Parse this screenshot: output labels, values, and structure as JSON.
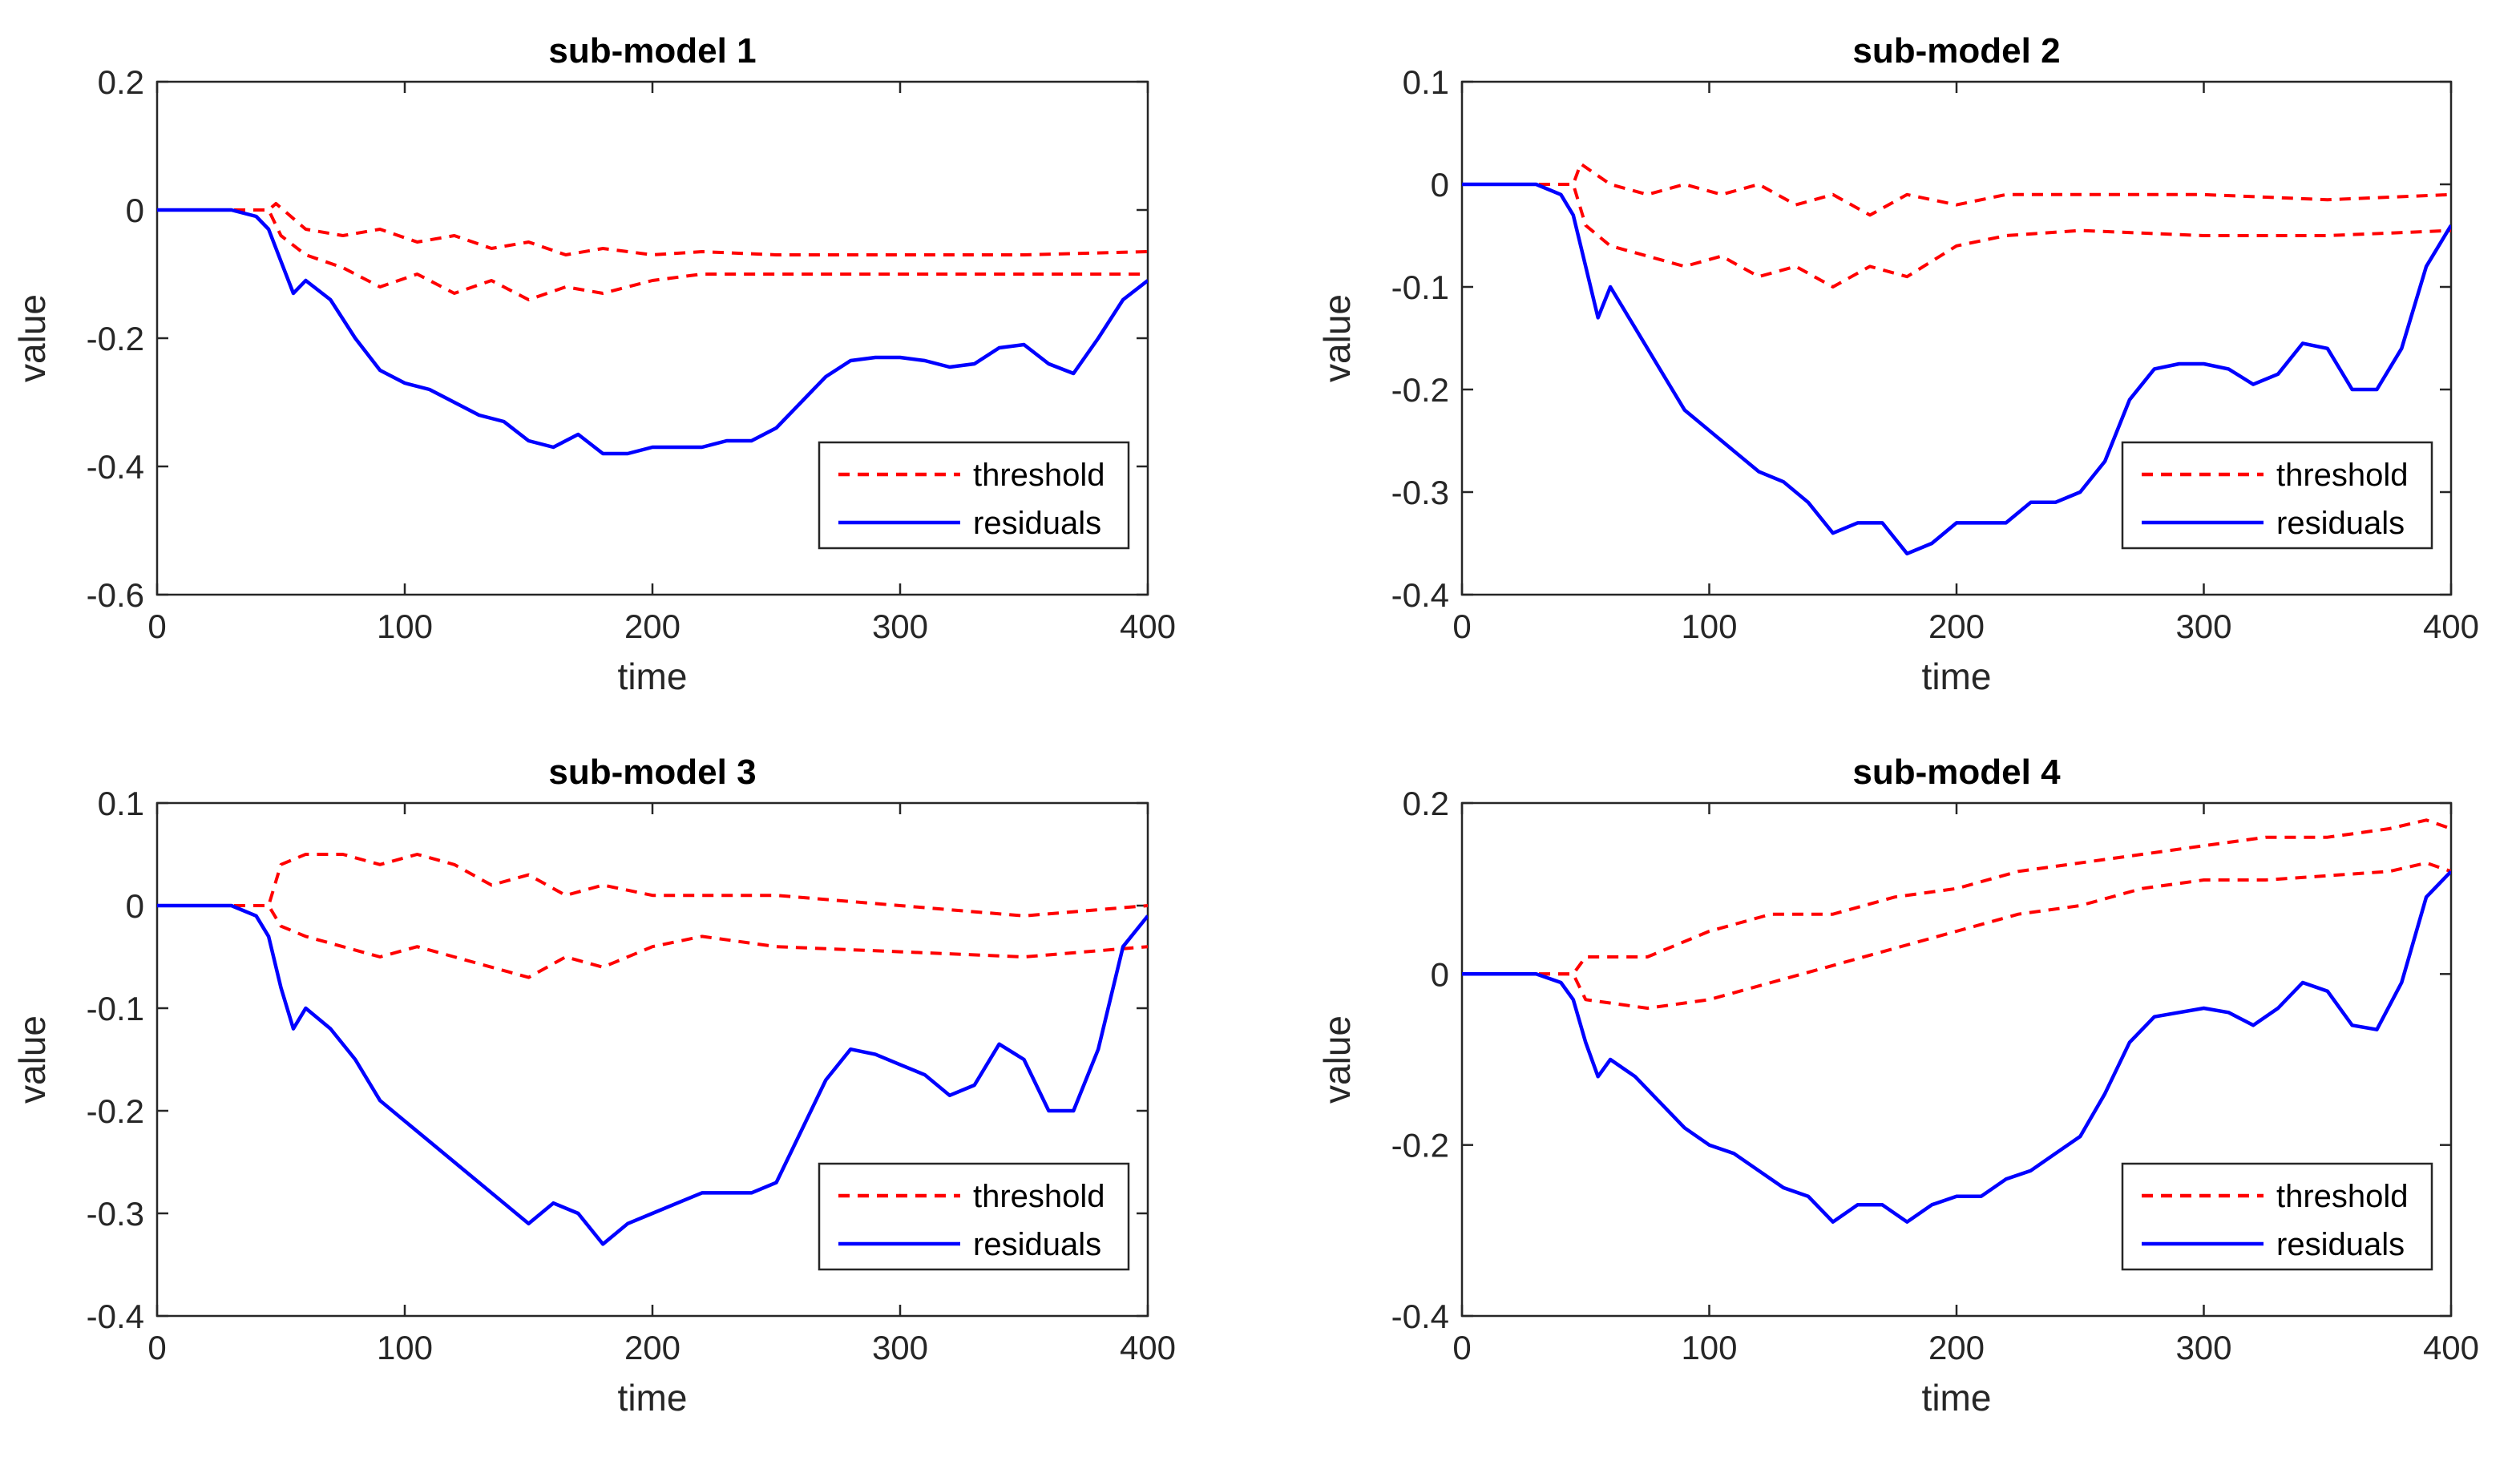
{
  "chart_data": [
    {
      "type": "line",
      "title": "sub-model 1",
      "xlabel": "time",
      "ylabel": "value",
      "xlim": [
        0,
        400
      ],
      "ylim": [
        -0.6,
        0.2
      ],
      "xticks": [
        "0",
        "100",
        "200",
        "300",
        "400"
      ],
      "yticks": [
        "-0.6",
        "-0.4",
        "-0.2",
        "0",
        "0.2"
      ],
      "legend_position": "lower-right",
      "series": [
        {
          "name": "threshold",
          "style": "dashed",
          "color": "#ff0000",
          "upper": {
            "x": [
              0,
              45,
              48,
              60,
              75,
              90,
              105,
              120,
              135,
              150,
              165,
              180,
              200,
              220,
              250,
              300,
              350,
              400
            ],
            "y": [
              0,
              0,
              0.01,
              -0.03,
              -0.04,
              -0.03,
              -0.05,
              -0.04,
              -0.06,
              -0.05,
              -0.07,
              -0.06,
              -0.07,
              -0.065,
              -0.07,
              -0.07,
              -0.07,
              -0.065
            ]
          },
          "lower": {
            "x": [
              0,
              45,
              50,
              60,
              75,
              90,
              105,
              120,
              135,
              150,
              165,
              180,
              200,
              220,
              250,
              300,
              350,
              400
            ],
            "y": [
              0,
              0,
              -0.04,
              -0.07,
              -0.09,
              -0.12,
              -0.1,
              -0.13,
              -0.11,
              -0.14,
              -0.12,
              -0.13,
              -0.11,
              -0.1,
              -0.1,
              -0.1,
              -0.1,
              -0.1
            ]
          }
        },
        {
          "name": "residuals",
          "style": "solid",
          "color": "#0000ff",
          "x": [
            0,
            30,
            40,
            45,
            50,
            55,
            60,
            70,
            80,
            90,
            100,
            110,
            120,
            130,
            140,
            150,
            160,
            170,
            180,
            190,
            200,
            210,
            220,
            230,
            240,
            250,
            260,
            270,
            280,
            290,
            300,
            310,
            320,
            330,
            340,
            350,
            360,
            370,
            380,
            390,
            400
          ],
          "y": [
            0,
            0,
            -0.01,
            -0.03,
            -0.08,
            -0.13,
            -0.11,
            -0.14,
            -0.2,
            -0.25,
            -0.27,
            -0.28,
            -0.3,
            -0.32,
            -0.33,
            -0.36,
            -0.37,
            -0.35,
            -0.38,
            -0.38,
            -0.37,
            -0.37,
            -0.37,
            -0.36,
            -0.36,
            -0.34,
            -0.3,
            -0.26,
            -0.235,
            -0.23,
            -0.23,
            -0.235,
            -0.245,
            -0.24,
            -0.215,
            -0.21,
            -0.24,
            -0.255,
            -0.2,
            -0.14,
            -0.11
          ]
        }
      ]
    },
    {
      "type": "line",
      "title": "sub-model 2",
      "xlabel": "time",
      "ylabel": "value",
      "xlim": [
        0,
        400
      ],
      "ylim": [
        -0.4,
        0.1
      ],
      "xticks": [
        "0",
        "100",
        "200",
        "300",
        "400"
      ],
      "yticks": [
        "-0.4",
        "-0.3",
        "-0.2",
        "-0.1",
        "0",
        "0.1"
      ],
      "legend_position": "lower-right",
      "series": [
        {
          "name": "threshold",
          "style": "dashed",
          "color": "#ff0000",
          "upper": {
            "x": [
              0,
              45,
              48,
              60,
              75,
              90,
              105,
              120,
              135,
              150,
              165,
              180,
              200,
              220,
              250,
              300,
              350,
              400
            ],
            "y": [
              0,
              0,
              0.02,
              0.0,
              -0.01,
              0.0,
              -0.01,
              0.0,
              -0.02,
              -0.01,
              -0.03,
              -0.01,
              -0.02,
              -0.01,
              -0.01,
              -0.01,
              -0.015,
              -0.01
            ]
          },
          "lower": {
            "x": [
              0,
              45,
              50,
              60,
              75,
              90,
              105,
              120,
              135,
              150,
              165,
              180,
              200,
              220,
              250,
              300,
              350,
              400
            ],
            "y": [
              0,
              0,
              -0.04,
              -0.06,
              -0.07,
              -0.08,
              -0.07,
              -0.09,
              -0.08,
              -0.1,
              -0.08,
              -0.09,
              -0.06,
              -0.05,
              -0.045,
              -0.05,
              -0.05,
              -0.045
            ]
          }
        },
        {
          "name": "residuals",
          "style": "solid",
          "color": "#0000ff",
          "x": [
            0,
            30,
            40,
            45,
            50,
            55,
            60,
            70,
            80,
            90,
            100,
            110,
            120,
            130,
            140,
            150,
            160,
            170,
            180,
            190,
            200,
            210,
            220,
            230,
            240,
            250,
            260,
            270,
            280,
            290,
            300,
            310,
            320,
            330,
            340,
            350,
            360,
            370,
            380,
            390,
            400
          ],
          "y": [
            0,
            0,
            -0.01,
            -0.03,
            -0.08,
            -0.13,
            -0.1,
            -0.14,
            -0.18,
            -0.22,
            -0.24,
            -0.26,
            -0.28,
            -0.29,
            -0.31,
            -0.34,
            -0.33,
            -0.33,
            -0.36,
            -0.35,
            -0.33,
            -0.33,
            -0.33,
            -0.31,
            -0.31,
            -0.3,
            -0.27,
            -0.21,
            -0.18,
            -0.175,
            -0.175,
            -0.18,
            -0.195,
            -0.185,
            -0.155,
            -0.16,
            -0.2,
            -0.2,
            -0.16,
            -0.08,
            -0.04
          ]
        }
      ]
    },
    {
      "type": "line",
      "title": "sub-model 3",
      "xlabel": "time",
      "ylabel": "value",
      "xlim": [
        0,
        400
      ],
      "ylim": [
        -0.4,
        0.1
      ],
      "xticks": [
        "0",
        "100",
        "200",
        "300",
        "400"
      ],
      "yticks": [
        "-0.4",
        "-0.3",
        "-0.2",
        "-0.1",
        "0",
        "0.1"
      ],
      "legend_position": "lower-right",
      "series": [
        {
          "name": "threshold",
          "style": "dashed",
          "color": "#ff0000",
          "upper": {
            "x": [
              0,
              45,
              50,
              60,
              75,
              90,
              105,
              120,
              135,
              150,
              165,
              180,
              200,
              220,
              250,
              300,
              350,
              400
            ],
            "y": [
              0,
              0,
              0.04,
              0.05,
              0.05,
              0.04,
              0.05,
              0.04,
              0.02,
              0.03,
              0.01,
              0.02,
              0.01,
              0.01,
              0.01,
              0.0,
              -0.01,
              0.0
            ]
          },
          "lower": {
            "x": [
              0,
              45,
              50,
              60,
              75,
              90,
              105,
              120,
              135,
              150,
              165,
              180,
              200,
              220,
              250,
              300,
              350,
              400
            ],
            "y": [
              0,
              0,
              -0.02,
              -0.03,
              -0.04,
              -0.05,
              -0.04,
              -0.05,
              -0.06,
              -0.07,
              -0.05,
              -0.06,
              -0.04,
              -0.03,
              -0.04,
              -0.045,
              -0.05,
              -0.04
            ]
          }
        },
        {
          "name": "residuals",
          "style": "solid",
          "color": "#0000ff",
          "x": [
            0,
            30,
            40,
            45,
            50,
            55,
            60,
            70,
            80,
            90,
            100,
            110,
            120,
            130,
            140,
            150,
            160,
            170,
            180,
            190,
            200,
            210,
            220,
            230,
            240,
            250,
            260,
            270,
            280,
            290,
            300,
            310,
            320,
            330,
            340,
            350,
            360,
            370,
            380,
            390,
            400
          ],
          "y": [
            0,
            0,
            -0.01,
            -0.03,
            -0.08,
            -0.12,
            -0.1,
            -0.12,
            -0.15,
            -0.19,
            -0.21,
            -0.23,
            -0.25,
            -0.27,
            -0.29,
            -0.31,
            -0.29,
            -0.3,
            -0.33,
            -0.31,
            -0.3,
            -0.29,
            -0.28,
            -0.28,
            -0.28,
            -0.27,
            -0.22,
            -0.17,
            -0.14,
            -0.145,
            -0.155,
            -0.165,
            -0.185,
            -0.175,
            -0.135,
            -0.15,
            -0.2,
            -0.2,
            -0.14,
            -0.04,
            -0.01
          ]
        }
      ]
    },
    {
      "type": "line",
      "title": "sub-model 4",
      "xlabel": "time",
      "ylabel": "value",
      "xlim": [
        0,
        400
      ],
      "ylim": [
        -0.4,
        0.2
      ],
      "xticks": [
        "0",
        "100",
        "200",
        "300",
        "400"
      ],
      "yticks": [
        "-0.4",
        "-0.2",
        "0",
        "0.2"
      ],
      "legend_position": "lower-right",
      "series": [
        {
          "name": "threshold",
          "style": "dashed",
          "color": "#ff0000",
          "upper": {
            "x": [
              0,
              45,
              50,
              75,
              100,
              125,
              150,
              175,
              200,
              225,
              250,
              275,
              300,
              325,
              350,
              375,
              390,
              400
            ],
            "y": [
              0,
              0,
              0.02,
              0.02,
              0.05,
              0.07,
              0.07,
              0.09,
              0.1,
              0.12,
              0.13,
              0.14,
              0.15,
              0.16,
              0.16,
              0.17,
              0.18,
              0.17
            ]
          },
          "lower": {
            "x": [
              0,
              45,
              50,
              75,
              100,
              125,
              150,
              175,
              200,
              225,
              250,
              275,
              300,
              325,
              350,
              375,
              390,
              400
            ],
            "y": [
              0,
              0,
              -0.03,
              -0.04,
              -0.03,
              -0.01,
              0.01,
              0.03,
              0.05,
              0.07,
              0.08,
              0.1,
              0.11,
              0.11,
              0.115,
              0.12,
              0.13,
              0.12
            ]
          }
        },
        {
          "name": "residuals",
          "style": "solid",
          "color": "#0000ff",
          "x": [
            0,
            30,
            40,
            45,
            50,
            55,
            60,
            70,
            80,
            90,
            100,
            110,
            120,
            130,
            140,
            150,
            160,
            170,
            180,
            190,
            200,
            210,
            220,
            230,
            240,
            250,
            260,
            270,
            280,
            290,
            300,
            310,
            320,
            330,
            340,
            350,
            360,
            370,
            380,
            390,
            400
          ],
          "y": [
            0,
            0,
            -0.01,
            -0.03,
            -0.08,
            -0.12,
            -0.1,
            -0.12,
            -0.15,
            -0.18,
            -0.2,
            -0.21,
            -0.23,
            -0.25,
            -0.26,
            -0.29,
            -0.27,
            -0.27,
            -0.29,
            -0.27,
            -0.26,
            -0.26,
            -0.24,
            -0.23,
            -0.21,
            -0.19,
            -0.14,
            -0.08,
            -0.05,
            -0.045,
            -0.04,
            -0.045,
            -0.06,
            -0.04,
            -0.01,
            -0.02,
            -0.06,
            -0.065,
            -0.01,
            0.09,
            0.12
          ]
        }
      ]
    }
  ]
}
